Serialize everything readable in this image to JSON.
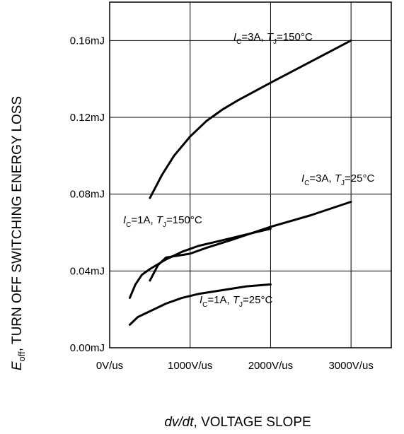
{
  "chart_data": {
    "type": "line",
    "xlabel": {
      "var": "dv/dt",
      "text": ", VOLTAGE SLOPE"
    },
    "ylabel": {
      "var": "E",
      "sub": "off",
      "text": ", TURN OFF SWITCHING ENERGY LOSS"
    },
    "xlim": [
      0,
      3500
    ],
    "ylim": [
      0,
      0.18
    ],
    "grid": true,
    "xticks": [
      {
        "value": 0,
        "label": "0V/us"
      },
      {
        "value": 1000,
        "label": "1000V/us"
      },
      {
        "value": 2000,
        "label": "2000V/us"
      },
      {
        "value": 3000,
        "label": "3000V/us"
      }
    ],
    "yticks": [
      {
        "value": 0,
        "label": "0.00mJ"
      },
      {
        "value": 0.04,
        "label": "0.04mJ"
      },
      {
        "value": 0.08,
        "label": "0.08mJ"
      },
      {
        "value": 0.12,
        "label": "0.12mJ"
      },
      {
        "value": 0.16,
        "label": "0.16mJ"
      }
    ],
    "series": [
      {
        "key": "ic3a_tj150",
        "label": {
          "i": "I",
          "isub": "C",
          "mid": "=3A, ",
          "t": "T",
          "tsub": "J",
          "tail": "=150°C"
        },
        "points": [
          [
            500,
            0.078
          ],
          [
            650,
            0.09
          ],
          [
            800,
            0.1
          ],
          [
            1000,
            0.11
          ],
          [
            1200,
            0.118
          ],
          [
            1400,
            0.124
          ],
          [
            1600,
            0.129
          ],
          [
            2000,
            0.138
          ],
          [
            2500,
            0.149
          ],
          [
            3000,
            0.16
          ]
        ]
      },
      {
        "key": "ic3a_tj25",
        "label": {
          "i": "I",
          "isub": "C",
          "mid": "=3A, ",
          "t": "T",
          "tsub": "J",
          "tail": "=25°C"
        },
        "points": [
          [
            500,
            0.035
          ],
          [
            600,
            0.043
          ],
          [
            700,
            0.047
          ],
          [
            850,
            0.048
          ],
          [
            1000,
            0.049
          ],
          [
            1200,
            0.052
          ],
          [
            1500,
            0.056
          ],
          [
            2000,
            0.063
          ],
          [
            2500,
            0.069
          ],
          [
            3000,
            0.076
          ]
        ]
      },
      {
        "key": "ic1a_tj150",
        "label": {
          "i": "I",
          "isub": "C",
          "mid": "=1A, ",
          "t": "T",
          "tsub": "J",
          "tail": "=150°C"
        },
        "points": [
          [
            250,
            0.026
          ],
          [
            320,
            0.033
          ],
          [
            400,
            0.038
          ],
          [
            500,
            0.041
          ],
          [
            700,
            0.046
          ],
          [
            900,
            0.05
          ],
          [
            1100,
            0.053
          ],
          [
            1400,
            0.056
          ],
          [
            1700,
            0.059
          ],
          [
            2000,
            0.062
          ]
        ]
      },
      {
        "key": "ic1a_tj25",
        "label": {
          "i": "I",
          "isub": "C",
          "mid": "=1A, ",
          "t": "T",
          "tsub": "J",
          "tail": "=25°C"
        },
        "points": [
          [
            250,
            0.012
          ],
          [
            350,
            0.016
          ],
          [
            500,
            0.019
          ],
          [
            700,
            0.023
          ],
          [
            900,
            0.026
          ],
          [
            1100,
            0.028
          ],
          [
            1400,
            0.03
          ],
          [
            1700,
            0.032
          ],
          [
            2000,
            0.033
          ]
        ]
      }
    ]
  }
}
